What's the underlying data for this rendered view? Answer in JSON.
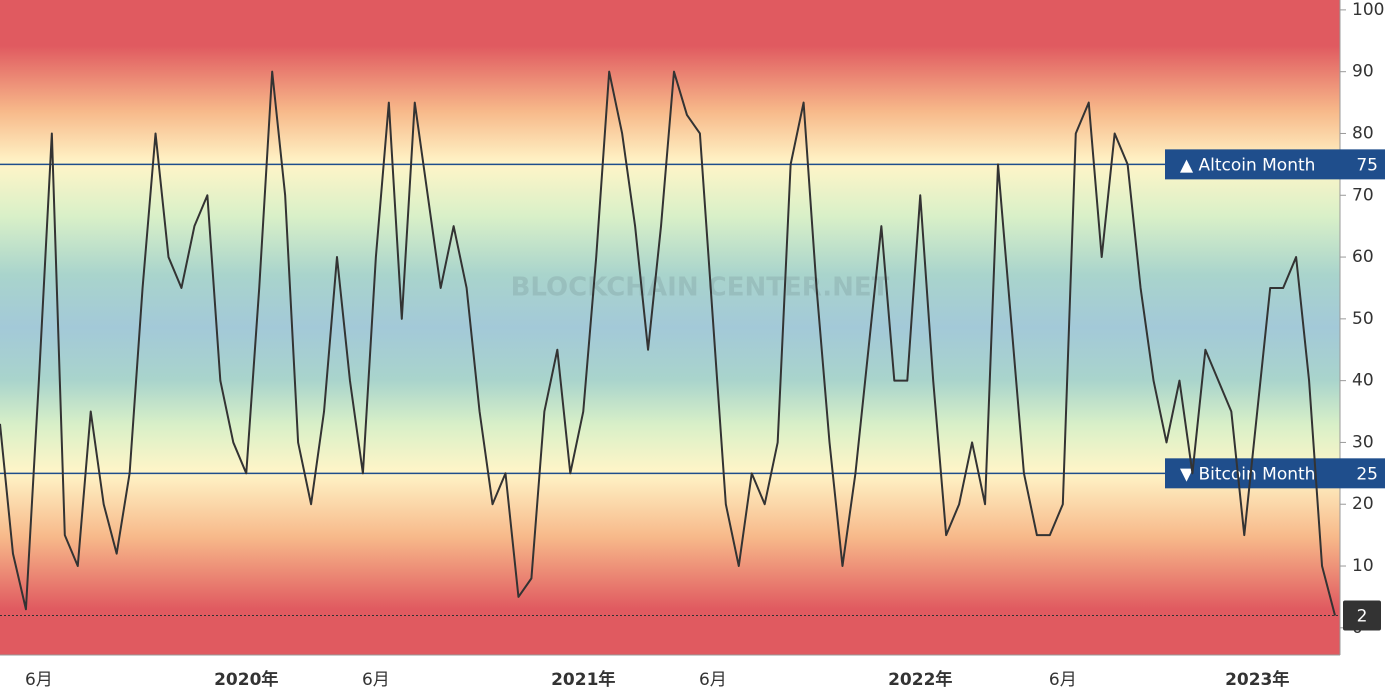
{
  "chart_data": {
    "type": "line",
    "watermark": "BLOCKCHAIN CENTER.NET",
    "categories": [
      null,
      null,
      null,
      "6月",
      null,
      null,
      null,
      null,
      null,
      null,
      null,
      null,
      null,
      null,
      null,
      null,
      null,
      null,
      null,
      "2020年",
      null,
      null,
      null,
      null,
      null,
      null,
      null,
      null,
      null,
      "6月",
      null,
      null,
      null,
      null,
      null,
      null,
      null,
      null,
      null,
      null,
      null,
      null,
      null,
      null,
      null,
      "2021年",
      null,
      null,
      null,
      null,
      null,
      null,
      null,
      null,
      null,
      "6月",
      null,
      null,
      null,
      null,
      null,
      null,
      null,
      null,
      null,
      null,
      null,
      null,
      null,
      null,
      null,
      "2022年",
      null,
      null,
      null,
      null,
      null,
      null,
      null,
      null,
      null,
      null,
      "6月",
      null,
      null,
      null,
      null,
      null,
      null,
      null,
      null,
      null,
      null,
      null,
      null,
      null,
      null,
      "2023年",
      null,
      null,
      null,
      null,
      null,
      null
    ],
    "series": [
      {
        "color": "#333333",
        "values": [
          33,
          12,
          3,
          40,
          80,
          15,
          10,
          35,
          20,
          12,
          25,
          55,
          80,
          60,
          55,
          65,
          70,
          40,
          30,
          25,
          55,
          90,
          70,
          30,
          20,
          35,
          60,
          40,
          25,
          60,
          85,
          50,
          85,
          70,
          55,
          65,
          55,
          35,
          20,
          25,
          5,
          8,
          35,
          45,
          25,
          35,
          60,
          90,
          80,
          65,
          45,
          65,
          90,
          83,
          80,
          50,
          20,
          10,
          25,
          20,
          30,
          75,
          85,
          55,
          30,
          10,
          25,
          45,
          65,
          40,
          40,
          70,
          40,
          15,
          20,
          30,
          20,
          75,
          50,
          25,
          15,
          15,
          20,
          80,
          85,
          60,
          80,
          75,
          55,
          40,
          30,
          40,
          25,
          45,
          40,
          35,
          15,
          35,
          55,
          55,
          60,
          40,
          10,
          2
        ]
      }
    ],
    "reference_lines": [
      {
        "value": 75,
        "label": "▲ Altcoin Month"
      },
      {
        "value": 25,
        "label": "▼ Bitcoin Month"
      }
    ],
    "ylim": [
      -4.4,
      101.6
    ],
    "yticks": [
      0,
      10,
      20,
      30,
      40,
      50,
      60,
      70,
      80,
      90,
      100
    ]
  }
}
